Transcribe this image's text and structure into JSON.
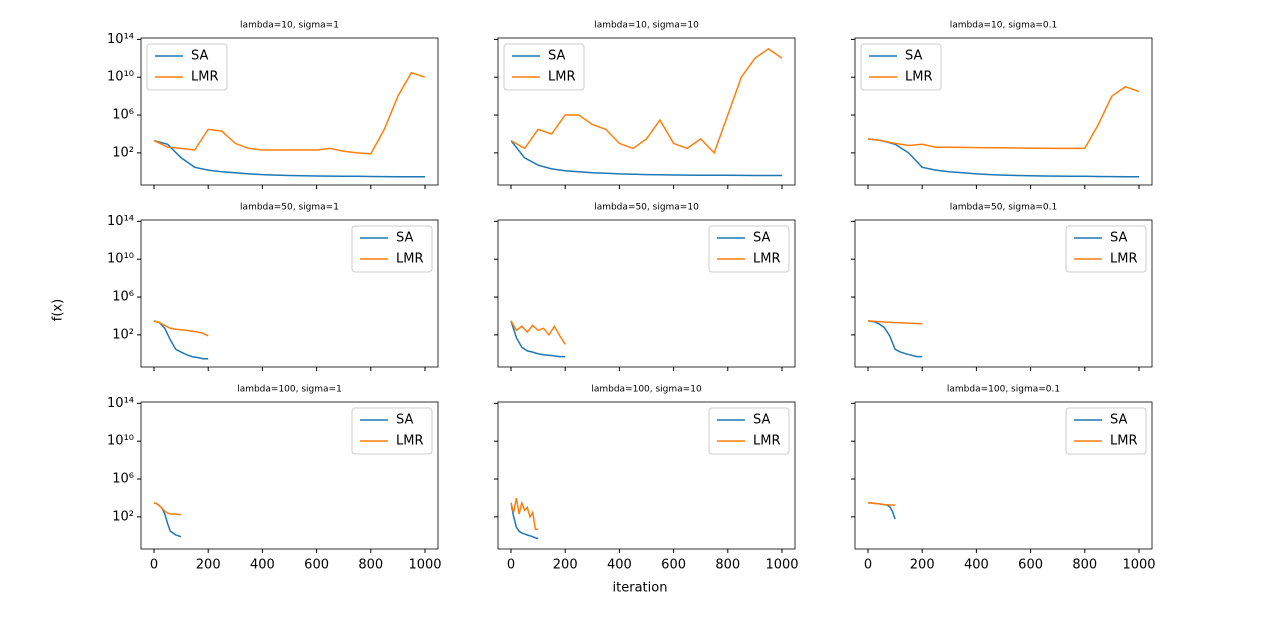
{
  "xlabel": "iteration",
  "ylabel": "f(x)",
  "chart_data": [
    {
      "type": "line",
      "title": "lambda=10, sigma=1",
      "yscale": "log",
      "legend": "upper left",
      "xlim": [
        -48,
        1048
      ],
      "ylim": [
        0.04,
        140000000000000.0
      ],
      "yticks": [
        {
          "value": 100,
          "label": "10²"
        },
        {
          "value": 1000000,
          "label": "10⁶"
        },
        {
          "value": 10000000000,
          "label": "10¹⁰"
        },
        {
          "value": 100000000000000,
          "label": "10¹⁴"
        }
      ],
      "x": [
        0,
        50,
        100,
        150,
        200,
        250,
        300,
        350,
        400,
        450,
        500,
        550,
        600,
        650,
        700,
        750,
        800,
        850,
        900,
        950,
        1000
      ],
      "series": [
        {
          "name": "SA",
          "color": "#1f77b4",
          "values": [
            2000,
            800,
            30,
            3,
            1.5,
            1,
            0.8,
            0.6,
            0.5,
            0.45,
            0.4,
            0.38,
            0.36,
            0.35,
            0.34,
            0.33,
            0.32,
            0.31,
            0.3,
            0.3,
            0.3
          ]
        },
        {
          "name": "LMR",
          "color": "#ff7f0e",
          "values": [
            2000,
            400,
            300,
            200,
            30000,
            20000,
            1000,
            300,
            200,
            200,
            200,
            200,
            200,
            300,
            150,
            100,
            80,
            30000,
            100000000,
            30000000000,
            10000000000
          ]
        }
      ]
    },
    {
      "type": "line",
      "title": "lambda=10, sigma=10",
      "yscale": "log",
      "legend": "upper left",
      "xlim": [
        -48,
        1048
      ],
      "ylim": [
        0.04,
        140000000000000.0
      ],
      "x": [
        0,
        50,
        100,
        150,
        200,
        250,
        300,
        350,
        400,
        450,
        500,
        550,
        600,
        650,
        700,
        750,
        800,
        850,
        900,
        950,
        1000
      ],
      "series": [
        {
          "name": "SA",
          "color": "#1f77b4",
          "values": [
            2000,
            30,
            5,
            2,
            1.3,
            1,
            0.8,
            0.7,
            0.6,
            0.55,
            0.5,
            0.48,
            0.46,
            0.45,
            0.44,
            0.43,
            0.42,
            0.41,
            0.4,
            0.4,
            0.4
          ]
        },
        {
          "name": "LMR",
          "color": "#ff7f0e",
          "values": [
            2000,
            300,
            30000,
            10000,
            1000000,
            1000000,
            100000,
            30000,
            1000,
            300,
            3000,
            300000,
            1000,
            300,
            3000,
            100,
            1000000,
            10000000000,
            1000000000000,
            10000000000000,
            1000000000000
          ]
        }
      ]
    },
    {
      "type": "line",
      "title": "lambda=10, sigma=0.1",
      "yscale": "log",
      "legend": "upper left",
      "xlim": [
        -48,
        1048
      ],
      "ylim": [
        0.04,
        140000000000000.0
      ],
      "x": [
        0,
        50,
        100,
        150,
        200,
        250,
        300,
        350,
        400,
        450,
        500,
        550,
        600,
        650,
        700,
        750,
        800,
        850,
        900,
        950,
        1000
      ],
      "series": [
        {
          "name": "SA",
          "color": "#1f77b4",
          "values": [
            3000,
            2000,
            800,
            100,
            3,
            1.5,
            1,
            0.8,
            0.6,
            0.5,
            0.45,
            0.4,
            0.38,
            0.36,
            0.35,
            0.34,
            0.33,
            0.32,
            0.31,
            0.3,
            0.3
          ]
        },
        {
          "name": "LMR",
          "color": "#ff7f0e",
          "values": [
            3000,
            2000,
            1000,
            600,
            800,
            400,
            400,
            380,
            360,
            350,
            340,
            330,
            320,
            310,
            300,
            300,
            300,
            100000,
            100000000,
            1000000000,
            300000000
          ]
        }
      ]
    },
    {
      "type": "line",
      "title": "lambda=50, sigma=1",
      "yscale": "log",
      "legend": "upper right",
      "xlim": [
        -48,
        1048
      ],
      "ylim": [
        0.04,
        140000000000000.0
      ],
      "yticks": [
        {
          "value": 100,
          "label": "10²"
        },
        {
          "value": 1000000,
          "label": "10⁶"
        },
        {
          "value": 10000000000,
          "label": "10¹⁰"
        },
        {
          "value": 100000000000000,
          "label": "10¹⁴"
        }
      ],
      "x": [
        0,
        20,
        40,
        60,
        80,
        100,
        120,
        140,
        160,
        180,
        200
      ],
      "series": [
        {
          "name": "SA",
          "color": "#1f77b4",
          "values": [
            3000,
            2000,
            500,
            30,
            3,
            1.5,
            0.8,
            0.5,
            0.4,
            0.3,
            0.3
          ]
        },
        {
          "name": "LMR",
          "color": "#ff7f0e",
          "values": [
            3000,
            2000,
            1000,
            500,
            400,
            350,
            300,
            250,
            200,
            150,
            80
          ]
        }
      ]
    },
    {
      "type": "line",
      "title": "lambda=50, sigma=10",
      "yscale": "log",
      "legend": "upper right",
      "xlim": [
        -48,
        1048
      ],
      "ylim": [
        0.04,
        140000000000000.0
      ],
      "x": [
        0,
        20,
        40,
        60,
        80,
        100,
        120,
        140,
        160,
        180,
        200
      ],
      "series": [
        {
          "name": "SA",
          "color": "#1f77b4",
          "values": [
            3000,
            50,
            5,
            2,
            1.5,
            1,
            0.8,
            0.7,
            0.6,
            0.5,
            0.5
          ]
        },
        {
          "name": "LMR",
          "color": "#ff7f0e",
          "values": [
            3000,
            300,
            800,
            200,
            1000,
            300,
            500,
            100,
            800,
            80,
            10
          ]
        }
      ]
    },
    {
      "type": "line",
      "title": "lambda=50, sigma=0.1",
      "yscale": "log",
      "legend": "upper right",
      "xlim": [
        -48,
        1048
      ],
      "ylim": [
        0.04,
        140000000000000.0
      ],
      "x": [
        0,
        20,
        40,
        60,
        80,
        100,
        120,
        140,
        160,
        180,
        200
      ],
      "series": [
        {
          "name": "SA",
          "color": "#1f77b4",
          "values": [
            3000,
            2500,
            1500,
            600,
            80,
            3,
            1.5,
            1,
            0.7,
            0.5,
            0.5
          ]
        },
        {
          "name": "LMR",
          "color": "#ff7f0e",
          "values": [
            3000,
            2800,
            2500,
            2300,
            2200,
            2000,
            1900,
            1800,
            1700,
            1600,
            1500
          ]
        }
      ]
    },
    {
      "type": "line",
      "title": "lambda=100, sigma=1",
      "yscale": "log",
      "legend": "upper right",
      "xlim": [
        -48,
        1048
      ],
      "ylim": [
        0.04,
        140000000000000.0
      ],
      "yticks": [
        {
          "value": 100,
          "label": "10²"
        },
        {
          "value": 1000000,
          "label": "10⁶"
        },
        {
          "value": 10000000000,
          "label": "10¹⁰"
        },
        {
          "value": 100000000000000,
          "label": "10¹⁴"
        }
      ],
      "xticks": [
        0,
        200,
        400,
        600,
        800,
        1000
      ],
      "x": [
        0,
        10,
        20,
        30,
        40,
        50,
        60,
        70,
        80,
        90,
        100
      ],
      "series": [
        {
          "name": "SA",
          "color": "#1f77b4",
          "values": [
            3000,
            2500,
            1500,
            800,
            200,
            20,
            3,
            2,
            1.2,
            1,
            0.8
          ]
        },
        {
          "name": "LMR",
          "color": "#ff7f0e",
          "values": [
            3000,
            2500,
            1500,
            800,
            400,
            250,
            200,
            200,
            200,
            180,
            180
          ]
        }
      ]
    },
    {
      "type": "line",
      "title": "lambda=100, sigma=10",
      "yscale": "log",
      "legend": "upper right",
      "xlim": [
        -48,
        1048
      ],
      "ylim": [
        0.04,
        140000000000000.0
      ],
      "xticks": [
        0,
        200,
        400,
        600,
        800,
        1000
      ],
      "x": [
        0,
        10,
        20,
        30,
        40,
        50,
        60,
        70,
        80,
        90,
        100
      ],
      "series": [
        {
          "name": "SA",
          "color": "#1f77b4",
          "values": [
            3000,
            100,
            8,
            3,
            2,
            1.5,
            1.2,
            1,
            0.8,
            0.6,
            0.5
          ]
        },
        {
          "name": "LMR",
          "color": "#ff7f0e",
          "values": [
            3000,
            300,
            10000,
            200,
            3000,
            500,
            1000,
            100,
            300,
            5,
            5
          ]
        }
      ]
    },
    {
      "type": "line",
      "title": "lambda=100, sigma=0.1",
      "yscale": "log",
      "legend": "upper right",
      "xlim": [
        -48,
        1048
      ],
      "ylim": [
        0.04,
        140000000000000.0
      ],
      "xticks": [
        0,
        200,
        400,
        600,
        800,
        1000
      ],
      "x": [
        0,
        10,
        20,
        30,
        40,
        50,
        60,
        70,
        80,
        90,
        100
      ],
      "series": [
        {
          "name": "SA",
          "color": "#1f77b4",
          "values": [
            3000,
            3000,
            2800,
            2600,
            2400,
            2200,
            2000,
            1800,
            1200,
            400,
            60
          ]
        },
        {
          "name": "LMR",
          "color": "#ff7f0e",
          "values": [
            3000,
            3000,
            2800,
            2600,
            2400,
            2200,
            2000,
            1900,
            1800,
            1800,
            1800
          ]
        }
      ]
    }
  ]
}
